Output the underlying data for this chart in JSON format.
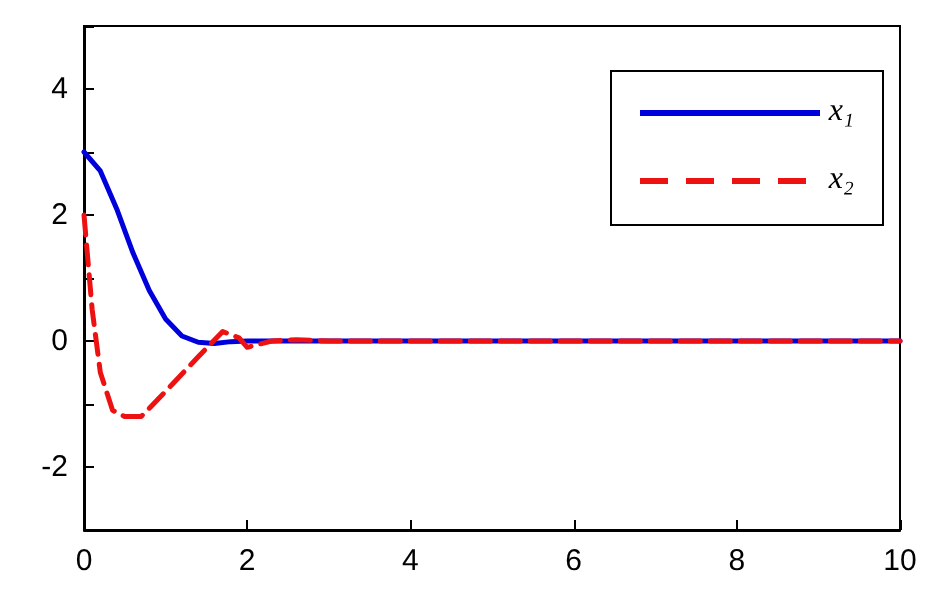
{
  "chart_data": {
    "type": "line",
    "xlim": [
      0,
      10
    ],
    "ylim": [
      -3,
      5
    ],
    "xticks": [
      0,
      2,
      4,
      6,
      8,
      10
    ],
    "yticks": [
      {
        "value": -3,
        "label": null
      },
      -2,
      {
        "value": -1,
        "label": null
      },
      0,
      {
        "value": 1,
        "label": null
      },
      2,
      {
        "value": 3,
        "label": null
      },
      4,
      {
        "value": 5,
        "label": null
      }
    ],
    "grid": false,
    "legend": "top right",
    "marker": "none",
    "series": [
      {
        "name": "x₁",
        "color": "#0000dd",
        "line_style": "solid",
        "x": [
          0,
          0.2,
          0.4,
          0.6,
          0.8,
          1.0,
          1.2,
          1.4,
          1.6,
          1.8,
          2,
          10
        ],
        "values": [
          3,
          2.7,
          2.1,
          1.4,
          0.8,
          0.35,
          0.08,
          -0.02,
          -0.04,
          -0.01,
          0,
          0
        ]
      },
      {
        "name": "x₂",
        "color": "#ee1111",
        "line_style": "dashed",
        "x": [
          0,
          0.1,
          0.2,
          0.35,
          0.5,
          0.7,
          1.0,
          1.4,
          1.7,
          1.9,
          2.0,
          2.3,
          2.6,
          3,
          10
        ],
        "values": [
          2,
          0.5,
          -0.5,
          -1.1,
          -1.2,
          -1.2,
          -0.8,
          -0.25,
          0.15,
          0.05,
          -0.1,
          0,
          0.02,
          0,
          0
        ]
      }
    ]
  }
}
